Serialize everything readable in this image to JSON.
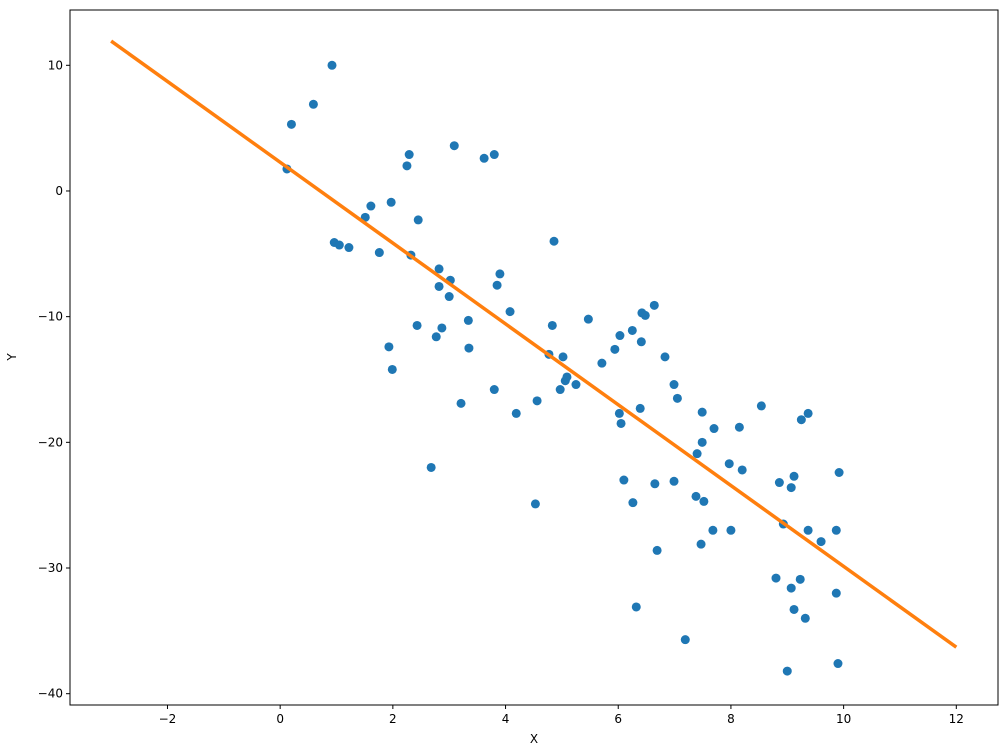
{
  "chart_data": {
    "type": "scatter",
    "x_label": "X",
    "y_label": "Y",
    "xlim": [
      -3.73,
      12.74
    ],
    "ylim": [
      -40.9,
      14.4
    ],
    "xticks": [
      {
        "value": -2,
        "label": "−2"
      },
      0,
      2,
      4,
      6,
      8,
      10,
      12
    ],
    "yticks": [
      {
        "value": -40,
        "label": "−40"
      },
      {
        "value": -30,
        "label": "−30"
      },
      {
        "value": -20,
        "label": "−20"
      },
      {
        "value": -10,
        "label": "−10"
      },
      0,
      10
    ],
    "series": [
      {
        "type": "scatter",
        "color": "#1f77b4",
        "x": [
          0.12,
          0.2,
          0.59,
          0.92,
          0.96,
          1.05,
          1.22,
          1.51,
          1.61,
          1.76,
          1.97,
          1.93,
          1.99,
          2.25,
          2.29,
          2.32,
          2.45,
          2.43,
          2.68,
          2.77,
          2.82,
          2.82,
          2.87,
          3.0,
          3.02,
          3.09,
          3.21,
          3.34,
          3.35,
          3.62,
          3.8,
          3.8,
          3.85,
          3.9,
          4.08,
          4.19,
          4.53,
          4.56,
          4.77,
          4.83,
          4.86,
          4.97,
          5.02,
          5.06,
          5.09,
          5.25,
          5.47,
          5.71,
          5.94,
          6.02,
          6.03,
          6.05,
          6.1,
          6.25,
          6.26,
          6.32,
          6.39,
          6.41,
          6.42,
          6.48,
          6.64,
          6.65,
          6.69,
          6.83,
          6.99,
          6.99,
          7.05,
          7.19,
          7.38,
          7.4,
          7.47,
          7.49,
          7.49,
          7.52,
          7.68,
          7.7,
          7.97,
          8.0,
          8.15,
          8.2,
          8.54,
          8.8,
          8.86,
          8.93,
          9.0,
          9.07,
          9.07,
          9.12,
          9.12,
          9.23,
          9.25,
          9.32,
          9.37,
          9.37,
          9.6,
          9.87,
          9.87,
          9.9,
          9.92
        ],
        "values": [
          1.75,
          5.3,
          6.9,
          10,
          -4.1,
          -4.3,
          -4.5,
          -2.1,
          -1.2,
          -4.9,
          -0.9,
          -12.4,
          -14.2,
          2.0,
          2.9,
          -5.1,
          -2.3,
          -10.7,
          -22.0,
          -11.6,
          -6.2,
          -7.6,
          -10.9,
          -8.4,
          -7.1,
          3.6,
          -16.9,
          -10.3,
          -12.5,
          2.6,
          2.9,
          -15.8,
          -7.5,
          -6.6,
          -9.6,
          -17.7,
          -24.9,
          -16.7,
          -13.0,
          -10.7,
          -4.0,
          -15.8,
          -13.2,
          -15.1,
          -14.8,
          -15.4,
          -10.2,
          -13.7,
          -12.6,
          -17.7,
          -11.5,
          -18.5,
          -23.0,
          -11.1,
          -24.8,
          -33.1,
          -17.3,
          -12.0,
          -9.7,
          -9.9,
          -9.1,
          -23.3,
          -28.6,
          -13.2,
          -15.4,
          -23.1,
          -16.5,
          -35.7,
          -24.3,
          -20.9,
          -28.1,
          -20.0,
          -17.6,
          -24.7,
          -27.0,
          -18.9,
          -21.7,
          -27.0,
          -18.8,
          -22.2,
          -17.1,
          -30.8,
          -23.2,
          -26.5,
          -38.2,
          -23.6,
          -31.6,
          -22.7,
          -33.3,
          -30.9,
          -18.2,
          -34.0,
          -17.7,
          -27.0,
          -27.9,
          -27.0,
          -32.0,
          -37.6,
          -22.4
        ]
      },
      {
        "type": "line",
        "color": "#ff7f0e",
        "x": [
          -3,
          12
        ],
        "values": [
          11.93,
          -36.3
        ]
      }
    ]
  }
}
